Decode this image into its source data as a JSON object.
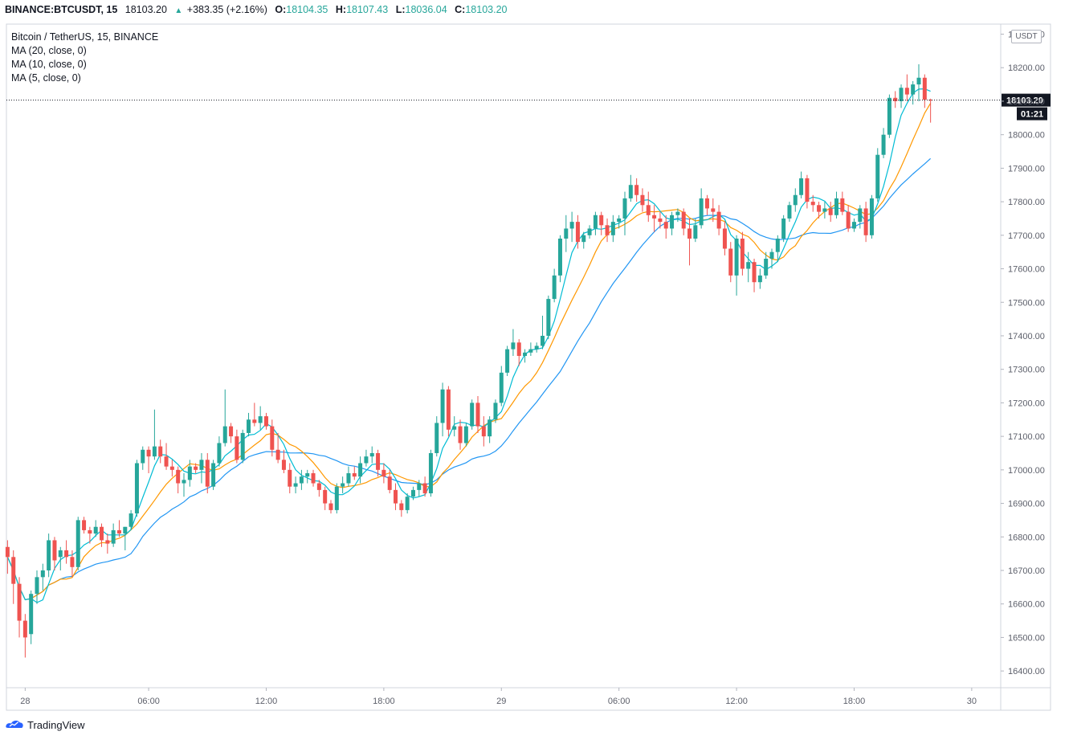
{
  "header": {
    "symbol": "BINANCE:BTCUSDT, 15",
    "last": "18103.20",
    "change": "+383.35 (+2.16%)",
    "o_label": "O:",
    "o": "18104.35",
    "h_label": "H:",
    "h": "18107.43",
    "l_label": "L:",
    "l": "18036.04",
    "c_label": "C:",
    "c": "18103.20"
  },
  "legend": {
    "title": "Bitcoin / TetherUS, 15, BINANCE",
    "ma20": "MA (20, close, 0)",
    "ma10": "MA (10, close, 0)",
    "ma5": "MA (5, close, 0)"
  },
  "price_axis": {
    "unit": "USDT",
    "current_price": "18103.20",
    "countdown": "01:21"
  },
  "branding": {
    "name": "TradingView"
  },
  "colors": {
    "up": "#26a69a",
    "down": "#ef5350",
    "ma20": "#2196f3",
    "ma10": "#ff9800",
    "ma5": "#00bcd4"
  },
  "chart_data": {
    "type": "candlestick",
    "ylim": [
      16350,
      18330
    ],
    "y_ticks": [
      16400,
      16500,
      16600,
      16700,
      16800,
      16900,
      17000,
      17100,
      17200,
      17300,
      17400,
      17500,
      17600,
      17700,
      17800,
      17900,
      18000,
      18100,
      18200,
      18300
    ],
    "y_tick_labels": [
      "16400.00",
      "16500.00",
      "16600.00",
      "16700.00",
      "16800.00",
      "16900.00",
      "17000.00",
      "17100.00",
      "17200.00",
      "17300.00",
      "17400.00",
      "17500.00",
      "17600.00",
      "17700.00",
      "17800.00",
      "17900.00",
      "18000.00",
      "18100.00",
      "18200.00",
      "18300.00"
    ],
    "x_tick_labels": [
      "28",
      "06:00",
      "12:00",
      "18:00",
      "29",
      "06:00",
      "12:00",
      "18:00",
      "30"
    ],
    "x_tick_bar_index": [
      3,
      24,
      44,
      64,
      84,
      104,
      124,
      144,
      164
    ],
    "series": [
      {
        "name": "MA (20, close, 0)"
      },
      {
        "name": "MA (10, close, 0)"
      },
      {
        "name": "MA (5, close, 0)"
      }
    ],
    "ma_periods": [
      20,
      10,
      5
    ],
    "ohlc": [
      [
        16770,
        16790,
        16690,
        16740
      ],
      [
        16740,
        16760,
        16600,
        16660
      ],
      [
        16660,
        16680,
        16500,
        16550
      ],
      [
        16550,
        16570,
        16440,
        16500
      ],
      [
        16510,
        16640,
        16480,
        16630
      ],
      [
        16630,
        16700,
        16600,
        16680
      ],
      [
        16680,
        16720,
        16640,
        16700
      ],
      [
        16700,
        16810,
        16680,
        16790
      ],
      [
        16790,
        16800,
        16700,
        16730
      ],
      [
        16740,
        16770,
        16700,
        16760
      ],
      [
        16760,
        16790,
        16720,
        16740
      ],
      [
        16740,
        16760,
        16680,
        16710
      ],
      [
        16710,
        16860,
        16700,
        16850
      ],
      [
        16850,
        16860,
        16810,
        16820
      ],
      [
        16820,
        16830,
        16780,
        16810
      ],
      [
        16810,
        16850,
        16800,
        16830
      ],
      [
        16830,
        16840,
        16770,
        16790
      ],
      [
        16790,
        16810,
        16750,
        16780
      ],
      [
        16780,
        16840,
        16770,
        16820
      ],
      [
        16820,
        16850,
        16800,
        16810
      ],
      [
        16810,
        16830,
        16760,
        16830
      ],
      [
        16830,
        16880,
        16820,
        16870
      ],
      [
        16870,
        17030,
        16860,
        17020
      ],
      [
        17020,
        17070,
        17000,
        17060
      ],
      [
        17060,
        17070,
        16990,
        17040
      ],
      [
        17040,
        17180,
        17030,
        17070
      ],
      [
        17070,
        17090,
        17020,
        17040
      ],
      [
        17040,
        17080,
        17000,
        17010
      ],
      [
        17010,
        17030,
        16980,
        17000
      ],
      [
        17000,
        17010,
        16930,
        16960
      ],
      [
        16960,
        16990,
        16920,
        16970
      ],
      [
        16970,
        17030,
        16950,
        17010
      ],
      [
        17010,
        17020,
        16990,
        17000
      ],
      [
        17000,
        17050,
        16960,
        17030
      ],
      [
        17030,
        17050,
        16930,
        16950
      ],
      [
        16950,
        17030,
        16940,
        17020
      ],
      [
        17020,
        17100,
        17010,
        17080
      ],
      [
        17080,
        17240,
        17070,
        17130
      ],
      [
        17130,
        17140,
        17080,
        17100
      ],
      [
        17100,
        17120,
        17020,
        17030
      ],
      [
        17030,
        17120,
        17020,
        17110
      ],
      [
        17110,
        17170,
        17100,
        17150
      ],
      [
        17150,
        17200,
        17130,
        17140
      ],
      [
        17140,
        17190,
        17120,
        17160
      ],
      [
        17160,
        17170,
        17120,
        17130
      ],
      [
        17130,
        17150,
        17040,
        17060
      ],
      [
        17060,
        17110,
        17020,
        17030
      ],
      [
        17030,
        17060,
        16990,
        17000
      ],
      [
        17000,
        17020,
        16930,
        16950
      ],
      [
        16950,
        16980,
        16930,
        16960
      ],
      [
        16960,
        17000,
        16940,
        16980
      ],
      [
        16980,
        17000,
        16960,
        16990
      ],
      [
        16990,
        17000,
        16950,
        16960
      ],
      [
        16960,
        16970,
        16920,
        16940
      ],
      [
        16940,
        16950,
        16880,
        16900
      ],
      [
        16900,
        16910,
        16870,
        16880
      ],
      [
        16880,
        16960,
        16870,
        16950
      ],
      [
        16950,
        16980,
        16930,
        16960
      ],
      [
        16960,
        17010,
        16950,
        16990
      ],
      [
        16990,
        17010,
        16970,
        16980
      ],
      [
        16980,
        17040,
        16960,
        17020
      ],
      [
        17020,
        17060,
        17010,
        17040
      ],
      [
        17040,
        17070,
        17020,
        17050
      ],
      [
        17050,
        17060,
        16980,
        17000
      ],
      [
        17000,
        17020,
        16960,
        16980
      ],
      [
        16980,
        17000,
        16930,
        16940
      ],
      [
        16940,
        16960,
        16880,
        16900
      ],
      [
        16900,
        16910,
        16860,
        16880
      ],
      [
        16880,
        16930,
        16870,
        16920
      ],
      [
        16920,
        16950,
        16910,
        16940
      ],
      [
        16940,
        16970,
        16920,
        16960
      ],
      [
        16960,
        16980,
        16920,
        16930
      ],
      [
        16930,
        17060,
        16920,
        17050
      ],
      [
        17050,
        17160,
        17040,
        17140
      ],
      [
        17140,
        17260,
        17100,
        17240
      ],
      [
        17240,
        17250,
        17100,
        17120
      ],
      [
        17120,
        17160,
        17100,
        17130
      ],
      [
        17130,
        17150,
        17060,
        17080
      ],
      [
        17080,
        17140,
        17070,
        17130
      ],
      [
        17130,
        17210,
        17120,
        17200
      ],
      [
        17200,
        17220,
        17110,
        17130
      ],
      [
        17130,
        17160,
        17070,
        17100
      ],
      [
        17100,
        17160,
        17080,
        17150
      ],
      [
        17150,
        17210,
        17140,
        17200
      ],
      [
        17200,
        17310,
        17190,
        17290
      ],
      [
        17290,
        17370,
        17280,
        17360
      ],
      [
        17360,
        17420,
        17340,
        17380
      ],
      [
        17380,
        17390,
        17310,
        17340
      ],
      [
        17340,
        17360,
        17320,
        17350
      ],
      [
        17350,
        17380,
        17340,
        17360
      ],
      [
        17360,
        17380,
        17350,
        17370
      ],
      [
        17370,
        17460,
        17360,
        17400
      ],
      [
        17400,
        17520,
        17390,
        17510
      ],
      [
        17510,
        17600,
        17500,
        17580
      ],
      [
        17580,
        17700,
        17560,
        17690
      ],
      [
        17690,
        17760,
        17650,
        17720
      ],
      [
        17720,
        17770,
        17680,
        17740
      ],
      [
        17740,
        17760,
        17660,
        17680
      ],
      [
        17680,
        17710,
        17660,
        17700
      ],
      [
        17700,
        17730,
        17690,
        17720
      ],
      [
        17720,
        17770,
        17700,
        17760
      ],
      [
        17760,
        17770,
        17700,
        17730
      ],
      [
        17730,
        17750,
        17680,
        17700
      ],
      [
        17700,
        17760,
        17680,
        17740
      ],
      [
        17740,
        17760,
        17720,
        17750
      ],
      [
        17750,
        17830,
        17700,
        17810
      ],
      [
        17810,
        17880,
        17800,
        17850
      ],
      [
        17850,
        17870,
        17800,
        17820
      ],
      [
        17820,
        17840,
        17770,
        17790
      ],
      [
        17790,
        17830,
        17740,
        17760
      ],
      [
        17760,
        17790,
        17710,
        17750
      ],
      [
        17750,
        17770,
        17720,
        17740
      ],
      [
        17740,
        17760,
        17690,
        17720
      ],
      [
        17720,
        17770,
        17700,
        17760
      ],
      [
        17760,
        17780,
        17740,
        17770
      ],
      [
        17770,
        17780,
        17700,
        17720
      ],
      [
        17720,
        17750,
        17610,
        17690
      ],
      [
        17690,
        17750,
        17680,
        17730
      ],
      [
        17730,
        17840,
        17720,
        17810
      ],
      [
        17810,
        17820,
        17760,
        17780
      ],
      [
        17780,
        17810,
        17740,
        17770
      ],
      [
        17770,
        17790,
        17700,
        17720
      ],
      [
        17720,
        17740,
        17640,
        17660
      ],
      [
        17660,
        17680,
        17560,
        17580
      ],
      [
        17580,
        17700,
        17520,
        17690
      ],
      [
        17690,
        17710,
        17580,
        17600
      ],
      [
        17600,
        17650,
        17560,
        17620
      ],
      [
        17620,
        17630,
        17530,
        17560
      ],
      [
        17560,
        17600,
        17540,
        17580
      ],
      [
        17580,
        17650,
        17570,
        17630
      ],
      [
        17630,
        17660,
        17600,
        17650
      ],
      [
        17650,
        17700,
        17620,
        17690
      ],
      [
        17690,
        17760,
        17680,
        17750
      ],
      [
        17750,
        17800,
        17740,
        17790
      ],
      [
        17790,
        17840,
        17770,
        17820
      ],
      [
        17820,
        17890,
        17810,
        17870
      ],
      [
        17870,
        17880,
        17780,
        17800
      ],
      [
        17800,
        17820,
        17770,
        17790
      ],
      [
        17790,
        17800,
        17750,
        17770
      ],
      [
        17770,
        17800,
        17750,
        17780
      ],
      [
        17780,
        17800,
        17740,
        17760
      ],
      [
        17760,
        17830,
        17750,
        17810
      ],
      [
        17810,
        17830,
        17760,
        17770
      ],
      [
        17770,
        17790,
        17710,
        17720
      ],
      [
        17720,
        17750,
        17710,
        17740
      ],
      [
        17740,
        17790,
        17720,
        17780
      ],
      [
        17780,
        17800,
        17680,
        17700
      ],
      [
        17700,
        17820,
        17690,
        17810
      ],
      [
        17810,
        17960,
        17800,
        17940
      ],
      [
        17940,
        18020,
        17930,
        18000
      ],
      [
        18000,
        18120,
        17990,
        18110
      ],
      [
        18110,
        18130,
        18080,
        18100
      ],
      [
        18100,
        18150,
        18080,
        18140
      ],
      [
        18140,
        18180,
        18100,
        18120
      ],
      [
        18120,
        18160,
        18090,
        18150
      ],
      [
        18150,
        18210,
        18100,
        18170
      ],
      [
        18170,
        18180,
        18080,
        18104.35
      ],
      [
        18104.35,
        18107.43,
        18036.04,
        18103.2
      ]
    ]
  }
}
